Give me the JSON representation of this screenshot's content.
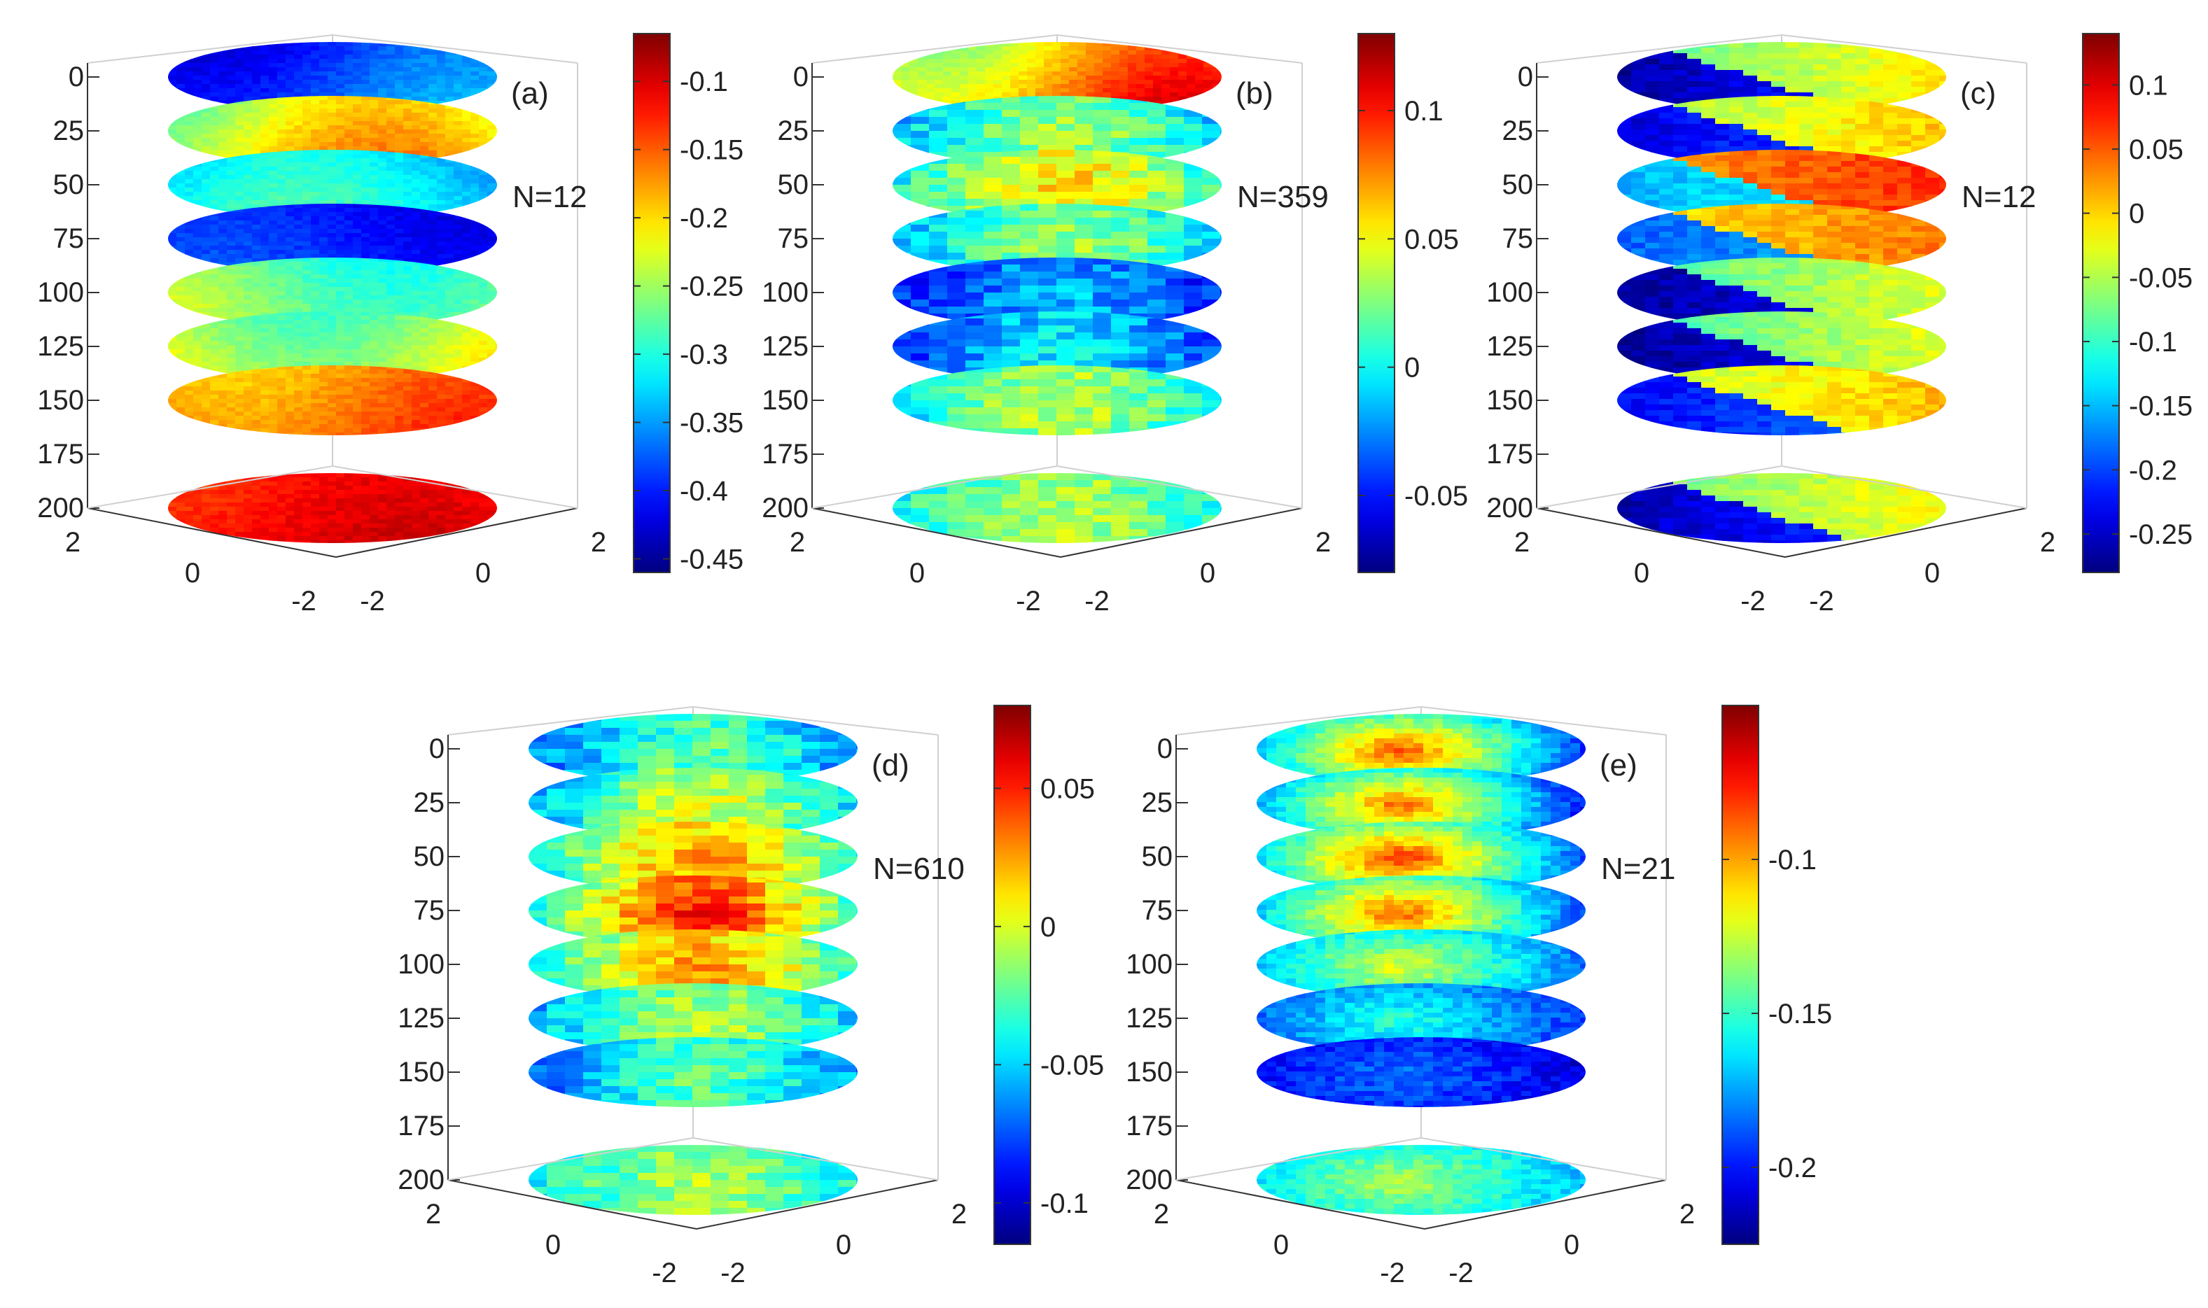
{
  "figure": {
    "colormap": [
      "#00007f",
      "#0000ff",
      "#007fff",
      "#00ffff",
      "#7fff7f",
      "#ffff00",
      "#ff7f00",
      "#ff0000",
      "#7f0000"
    ],
    "axis_color": "#333333",
    "grid_color": "#d0d0d0",
    "background": "#ffffff"
  },
  "chart_data": [
    {
      "panel": "(a)",
      "type": "heatmap",
      "annotation": "N=12",
      "z_ticks": [
        "0",
        "25",
        "50",
        "75",
        "100",
        "125",
        "150",
        "175",
        "200"
      ],
      "x_ticks": [
        "2",
        "0",
        "-2"
      ],
      "y_ticks": [
        "-2",
        "0",
        "2"
      ],
      "colorbar": {
        "range": [
          -0.46,
          -0.065
        ],
        "ticks": [
          -0.1,
          -0.15,
          -0.2,
          -0.25,
          -0.3,
          -0.35,
          -0.4,
          -0.45
        ],
        "tick_labels": [
          "-0.1",
          "-0.15",
          "-0.2",
          "-0.25",
          "-0.3",
          "-0.35",
          "-0.4",
          "-0.45"
        ]
      },
      "slices": [
        {
          "depth": 0,
          "level": 0.2,
          "gradient": 0.12,
          "pattern": "smooth"
        },
        {
          "depth": 25,
          "level": 0.6,
          "gradient": 0.18,
          "pattern": "smooth"
        },
        {
          "depth": 50,
          "level": 0.35,
          "gradient": 0.12,
          "pattern": "smooth"
        },
        {
          "depth": 75,
          "level": 0.15,
          "gradient": 0.06,
          "pattern": "smooth"
        },
        {
          "depth": 100,
          "level": 0.5,
          "gradient": 0.12,
          "pattern": "smooth"
        },
        {
          "depth": 125,
          "level": 0.58,
          "gradient": 0.15,
          "pattern": "smooth"
        },
        {
          "depth": 150,
          "level": 0.76,
          "gradient": 0.1,
          "pattern": "smooth"
        },
        {
          "depth": 200,
          "level": 0.87,
          "gradient": 0.06,
          "pattern": "smooth"
        }
      ]
    },
    {
      "panel": "(b)",
      "type": "heatmap",
      "annotation": "N=359",
      "z_ticks": [
        "0",
        "25",
        "50",
        "75",
        "100",
        "125",
        "150",
        "175",
        "200"
      ],
      "x_ticks": [
        "2",
        "0",
        "-2"
      ],
      "y_ticks": [
        "-2",
        "0",
        "2"
      ],
      "colorbar": {
        "range": [
          -0.08,
          0.13
        ],
        "ticks": [
          0.1,
          0.05,
          0,
          -0.05
        ],
        "tick_labels": [
          "0.1",
          "0.05",
          "0",
          "-0.05"
        ]
      },
      "slices": [
        {
          "depth": 0,
          "level": 0.72,
          "gradient": 0.22,
          "pattern": "smooth"
        },
        {
          "depth": 25,
          "level": 0.42,
          "gradient": 0.14,
          "pattern": "tiles"
        },
        {
          "depth": 50,
          "level": 0.52,
          "gradient": 0.18,
          "pattern": "tiles"
        },
        {
          "depth": 75,
          "level": 0.42,
          "gradient": 0.14,
          "pattern": "tiles"
        },
        {
          "depth": 100,
          "level": 0.22,
          "gradient": 0.1,
          "pattern": "tiles"
        },
        {
          "depth": 125,
          "level": 0.27,
          "gradient": 0.12,
          "pattern": "tiles"
        },
        {
          "depth": 150,
          "level": 0.45,
          "gradient": 0.14,
          "pattern": "tiles"
        },
        {
          "depth": 200,
          "level": 0.47,
          "gradient": 0.1,
          "pattern": "tiles"
        }
      ]
    },
    {
      "panel": "(c)",
      "type": "heatmap",
      "annotation": "N=12",
      "z_ticks": [
        "0",
        "25",
        "50",
        "75",
        "100",
        "125",
        "150",
        "175",
        "200"
      ],
      "x_ticks": [
        "2",
        "0",
        "-2"
      ],
      "y_ticks": [
        "-2",
        "0",
        "2"
      ],
      "colorbar": {
        "range": [
          -0.28,
          0.14
        ],
        "ticks": [
          0.1,
          0.05,
          0,
          -0.05,
          -0.1,
          -0.15,
          -0.2,
          -0.25
        ],
        "tick_labels": [
          "0.1",
          "0.05",
          "0",
          "-0.05",
          "-0.1",
          "-0.15",
          "-0.2",
          "-0.25"
        ]
      },
      "slices": [
        {
          "depth": 0,
          "level": 0.55,
          "gradient": 0.2,
          "pattern": "stripe"
        },
        {
          "depth": 25,
          "level": 0.6,
          "gradient": 0.18,
          "pattern": "stripe"
        },
        {
          "depth": 50,
          "level": 0.78,
          "gradient": 0.12,
          "pattern": "stripe"
        },
        {
          "depth": 75,
          "level": 0.7,
          "gradient": 0.12,
          "pattern": "stripe"
        },
        {
          "depth": 100,
          "level": 0.52,
          "gradient": 0.16,
          "pattern": "stripe"
        },
        {
          "depth": 125,
          "level": 0.52,
          "gradient": 0.16,
          "pattern": "stripe"
        },
        {
          "depth": 150,
          "level": 0.62,
          "gradient": 0.16,
          "pattern": "stripe"
        },
        {
          "depth": 200,
          "level": 0.55,
          "gradient": 0.15,
          "pattern": "stripe"
        }
      ]
    },
    {
      "panel": "(d)",
      "type": "heatmap",
      "annotation": "N=610",
      "z_ticks": [
        "0",
        "25",
        "50",
        "75",
        "100",
        "125",
        "150",
        "175",
        "200"
      ],
      "x_ticks": [
        "2",
        "0",
        "-2"
      ],
      "y_ticks": [
        "-2",
        "0",
        "2"
      ],
      "colorbar": {
        "range": [
          -0.115,
          0.08
        ],
        "ticks": [
          0.05,
          0,
          -0.05,
          -0.1
        ],
        "tick_labels": [
          "0.05",
          "0",
          "-0.05",
          "-0.1"
        ]
      },
      "slices": [
        {
          "depth": 0,
          "level": 0.35,
          "gradient": 0.15,
          "pattern": "tiles"
        },
        {
          "depth": 25,
          "level": 0.45,
          "gradient": 0.18,
          "pattern": "tiles"
        },
        {
          "depth": 50,
          "level": 0.55,
          "gradient": 0.22,
          "pattern": "tiles"
        },
        {
          "depth": 75,
          "level": 0.62,
          "gradient": 0.28,
          "pattern": "tiles"
        },
        {
          "depth": 100,
          "level": 0.55,
          "gradient": 0.22,
          "pattern": "tiles"
        },
        {
          "depth": 125,
          "level": 0.42,
          "gradient": 0.16,
          "pattern": "tiles"
        },
        {
          "depth": 150,
          "level": 0.35,
          "gradient": 0.15,
          "pattern": "tiles"
        },
        {
          "depth": 200,
          "level": 0.45,
          "gradient": 0.12,
          "pattern": "tiles"
        }
      ]
    },
    {
      "panel": "(e)",
      "type": "heatmap",
      "annotation": "N=21",
      "z_ticks": [
        "0",
        "25",
        "50",
        "75",
        "100",
        "125",
        "150",
        "175",
        "200"
      ],
      "x_ticks": [
        "2",
        "0",
        "-2"
      ],
      "y_ticks": [
        "-2",
        "0",
        "2"
      ],
      "colorbar": {
        "range": [
          -0.225,
          -0.05
        ],
        "ticks": [
          -0.1,
          -0.15,
          -0.2
        ],
        "tick_labels": [
          "-0.1",
          "-0.15",
          "-0.2"
        ]
      },
      "slices": [
        {
          "depth": 0,
          "level": 0.55,
          "gradient": 0.25,
          "pattern": "blob"
        },
        {
          "depth": 25,
          "level": 0.52,
          "gradient": 0.26,
          "pattern": "blob"
        },
        {
          "depth": 50,
          "level": 0.58,
          "gradient": 0.26,
          "pattern": "blob"
        },
        {
          "depth": 75,
          "level": 0.55,
          "gradient": 0.24,
          "pattern": "blob"
        },
        {
          "depth": 100,
          "level": 0.45,
          "gradient": 0.15,
          "pattern": "blob"
        },
        {
          "depth": 125,
          "level": 0.32,
          "gradient": 0.1,
          "pattern": "blob"
        },
        {
          "depth": 150,
          "level": 0.18,
          "gradient": 0.06,
          "pattern": "blob"
        },
        {
          "depth": 200,
          "level": 0.45,
          "gradient": 0.1,
          "pattern": "blob"
        }
      ]
    }
  ]
}
